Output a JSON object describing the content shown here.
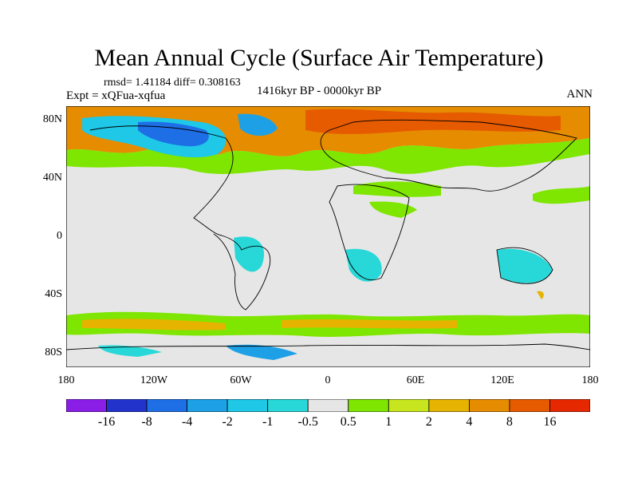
{
  "title": "Mean Annual Cycle (Surface Air Temperature)",
  "stats": "rmsd= 1.41184 diff= 0.308163",
  "experiment": "Expt = xQFua-xqfua",
  "period": "1416kyr BP - 0000kyr BP",
  "season": "ANN",
  "lat_labels": [
    "80N",
    "40N",
    "0",
    "40S",
    "80S"
  ],
  "lon_labels": [
    "180",
    "120W",
    "60W",
    "0",
    "60E",
    "120E",
    "180"
  ],
  "colorbar": {
    "labels": [
      "-16",
      "-8",
      "-4",
      "-2",
      "-1",
      "-0.5",
      "0.5",
      "1",
      "2",
      "4",
      "8",
      "16"
    ],
    "colors": [
      "#8a1ee6",
      "#2233cc",
      "#1e6ee6",
      "#1ea0e6",
      "#1ec8e6",
      "#28d8d8",
      "#e6e6e6",
      "#7ee600",
      "#c8e61e",
      "#e6b400",
      "#e68c00",
      "#e65a00",
      "#e62800"
    ]
  }
}
